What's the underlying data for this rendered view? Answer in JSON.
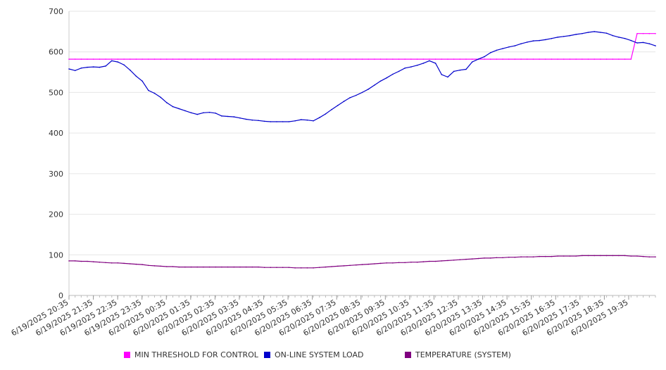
{
  "chart_data": {
    "type": "line",
    "title": "",
    "xlabel": "",
    "ylabel": "",
    "ylim": [
      0,
      700
    ],
    "yticks": [
      0,
      100,
      200,
      300,
      400,
      500,
      600,
      700
    ],
    "grid": true,
    "legend_position": "bottom",
    "x_tick_labels": [
      "6/19/2025 20:35",
      "6/19/2025 21:35",
      "6/19/2025 22:35",
      "6/19/2025 23:35",
      "6/20/2025 00:35",
      "6/20/2025 01:35",
      "6/20/2025 02:35",
      "6/20/2025 03:35",
      "6/20/2025 04:35",
      "6/20/2025 05:35",
      "6/20/2025 06:35",
      "6/20/2025 07:35",
      "6/20/2025 08:35",
      "6/20/2025 09:35",
      "6/20/2025 10:35",
      "6/20/2025 11:35",
      "6/20/2025 12:35",
      "6/20/2025 13:35",
      "6/20/2025 14:35",
      "6/20/2025 15:35",
      "6/20/2025 16:35",
      "6/20/2025 17:35",
      "6/20/2025 18:35",
      "6/20/2025 19:35"
    ],
    "x": [
      "20:35",
      "20:50",
      "21:05",
      "21:20",
      "21:35",
      "21:50",
      "22:05",
      "22:20",
      "22:35",
      "22:50",
      "23:05",
      "23:20",
      "23:35",
      "23:50",
      "00:05",
      "00:20",
      "00:35",
      "00:50",
      "01:05",
      "01:20",
      "01:35",
      "01:50",
      "02:05",
      "02:20",
      "02:35",
      "02:50",
      "03:05",
      "03:20",
      "03:35",
      "03:50",
      "04:05",
      "04:20",
      "04:35",
      "04:50",
      "05:05",
      "05:20",
      "05:35",
      "05:50",
      "06:05",
      "06:20",
      "06:35",
      "06:50",
      "07:05",
      "07:20",
      "07:35",
      "07:50",
      "08:05",
      "08:20",
      "08:35",
      "08:50",
      "09:05",
      "09:20",
      "09:35",
      "09:50",
      "10:05",
      "10:20",
      "10:35",
      "10:50",
      "11:05",
      "11:20",
      "11:35",
      "11:50",
      "12:05",
      "12:20",
      "12:35",
      "12:50",
      "13:05",
      "13:20",
      "13:35",
      "13:50",
      "14:05",
      "14:20",
      "14:35",
      "14:50",
      "15:05",
      "15:20",
      "15:35",
      "15:50",
      "16:05",
      "16:20",
      "16:35",
      "16:50",
      "17:05",
      "17:20",
      "17:35",
      "17:50",
      "18:05",
      "18:20",
      "18:35",
      "18:50",
      "19:05",
      "19:20",
      "19:35",
      "19:50",
      "20:05",
      "20:20",
      "20:35"
    ],
    "series": [
      {
        "name": "MIN THRESHOLD FOR CONTROL",
        "color": "#ff00ff",
        "values": [
          582,
          582,
          582,
          582,
          582,
          582,
          582,
          582,
          582,
          582,
          582,
          582,
          582,
          582,
          582,
          582,
          582,
          582,
          582,
          582,
          582,
          582,
          582,
          582,
          582,
          582,
          582,
          582,
          582,
          582,
          582,
          582,
          582,
          582,
          582,
          582,
          582,
          582,
          582,
          582,
          582,
          582,
          582,
          582,
          582,
          582,
          582,
          582,
          582,
          582,
          582,
          582,
          582,
          582,
          582,
          582,
          582,
          582,
          582,
          582,
          582,
          582,
          582,
          582,
          582,
          582,
          582,
          582,
          582,
          582,
          582,
          582,
          582,
          582,
          582,
          582,
          582,
          582,
          582,
          582,
          582,
          582,
          582,
          582,
          582,
          582,
          582,
          582,
          582,
          582,
          582,
          582,
          582,
          645,
          645,
          645,
          645
        ]
      },
      {
        "name": "ON-LINE SYSTEM LOAD",
        "color": "#0000cc",
        "values": [
          558,
          554,
          560,
          562,
          563,
          562,
          565,
          578,
          575,
          568,
          555,
          540,
          528,
          505,
          498,
          488,
          475,
          465,
          460,
          455,
          450,
          446,
          450,
          451,
          449,
          442,
          441,
          440,
          437,
          434,
          432,
          431,
          429,
          428,
          428,
          428,
          428,
          430,
          433,
          432,
          430,
          438,
          447,
          458,
          468,
          478,
          487,
          493,
          500,
          508,
          518,
          528,
          536,
          545,
          552,
          560,
          563,
          567,
          572,
          578,
          572,
          544,
          538,
          552,
          555,
          557,
          575,
          582,
          588,
          598,
          604,
          608,
          612,
          615,
          620,
          624,
          627,
          628,
          630,
          633,
          636,
          638,
          640,
          643,
          645,
          648,
          650,
          648,
          646,
          640,
          636,
          633,
          628,
          622,
          623,
          620,
          615
        ]
      },
      {
        "name": "TEMPERATURE (SYSTEM)",
        "color": "#800080",
        "values": [
          85,
          85,
          84,
          84,
          83,
          82,
          81,
          80,
          80,
          79,
          78,
          77,
          76,
          74,
          73,
          72,
          71,
          71,
          70,
          70,
          70,
          70,
          70,
          70,
          70,
          70,
          70,
          70,
          70,
          70,
          70,
          70,
          69,
          69,
          69,
          69,
          69,
          68,
          68,
          68,
          68,
          69,
          70,
          71,
          72,
          73,
          74,
          75,
          76,
          77,
          78,
          79,
          80,
          80,
          81,
          81,
          82,
          82,
          83,
          84,
          84,
          85,
          86,
          87,
          88,
          89,
          90,
          91,
          92,
          92,
          93,
          93,
          94,
          94,
          95,
          95,
          95,
          96,
          96,
          96,
          97,
          97,
          97,
          97,
          98,
          98,
          98,
          98,
          98,
          98,
          98,
          98,
          97,
          97,
          96,
          95,
          95
        ]
      }
    ]
  }
}
